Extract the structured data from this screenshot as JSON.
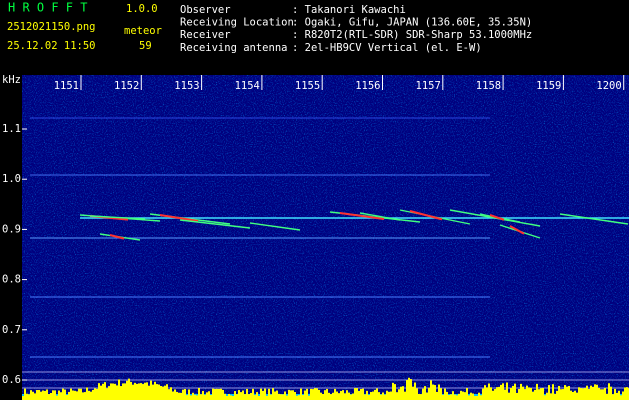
{
  "header": {
    "app": "H R O F F T",
    "version": "1.0.0",
    "file": "2512021150.png",
    "count_label": "meteor",
    "count": "59",
    "datetime": "25.12.02 11:50",
    "info": [
      {
        "label": "Observer",
        "value": ": Takanori Kawachi"
      },
      {
        "label": "Receiving Location",
        "value": ": Ogaki, Gifu, JAPAN (136.60E, 35.35N)"
      },
      {
        "label": "Receiver",
        "value": ": R820T2(RTL-SDR) SDR-Sharp 53.1000MHz"
      },
      {
        "label": "Receiving antenna",
        "value": ": 2el-HB9CV Vertical (el. E-W)"
      }
    ]
  },
  "axis": {
    "unit": "kHz",
    "yticks": [
      "1.1",
      "1.0",
      "0.9",
      "0.8",
      "0.7",
      "0.6"
    ],
    "xticks": [
      "1151",
      "1152",
      "1153",
      "1154",
      "1155",
      "1156",
      "1157",
      "1158",
      "1159",
      "1200"
    ]
  }
}
